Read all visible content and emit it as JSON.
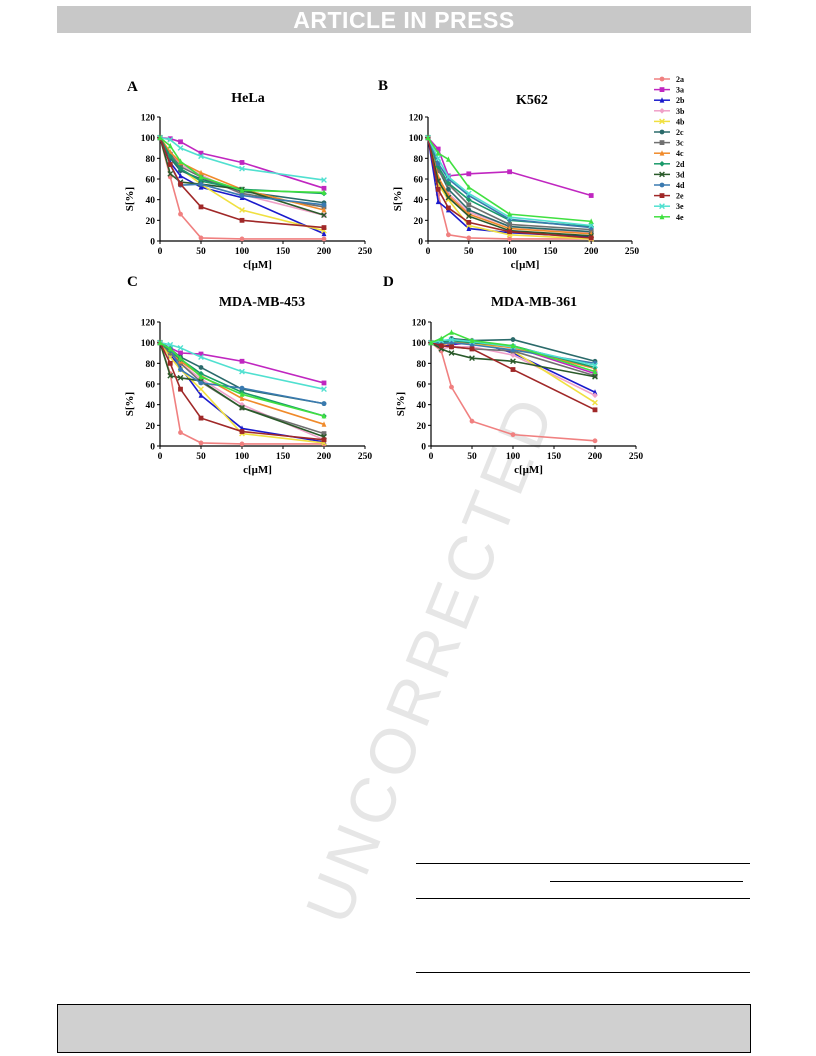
{
  "banner": {
    "text": "ARTICLE IN PRESS"
  },
  "watermark": {
    "text": "UNCORRECTED"
  },
  "legend": {
    "entries": [
      "2a",
      "3a",
      "2b",
      "3b",
      "4b",
      "2c",
      "3c",
      "4c",
      "2d",
      "3d",
      "4d",
      "2e",
      "3e",
      "4e"
    ],
    "colors": [
      "#f08080",
      "#c026c0",
      "#1a1acc",
      "#f0a0c8",
      "#f0e040",
      "#2a6a6a",
      "#707070",
      "#f08a2a",
      "#1a9a6a",
      "#2a5a2a",
      "#3a7ab0",
      "#a02828",
      "#50e0d0",
      "#40e040"
    ]
  },
  "chart_data": [
    {
      "type": "line",
      "panel": "A",
      "title": "HeLa",
      "xlabel": "c[μM]",
      "ylabel": "S[%]",
      "xlim": [
        0,
        250
      ],
      "ylim": [
        0,
        120
      ],
      "xticks": [
        0,
        50,
        100,
        150,
        200,
        250
      ],
      "yticks": [
        0,
        20,
        40,
        60,
        80,
        100,
        120
      ],
      "x": [
        0,
        12.5,
        25,
        50,
        100,
        200
      ],
      "series": [
        {
          "name": "2a",
          "values": [
            100,
            62,
            26,
            3,
            2,
            2
          ]
        },
        {
          "name": "3a",
          "values": [
            100,
            99,
            96,
            85,
            76,
            51
          ]
        },
        {
          "name": "2b",
          "values": [
            100,
            76,
            63,
            52,
            42,
            7
          ]
        },
        {
          "name": "3b",
          "values": [
            100,
            85,
            74,
            64,
            45,
            25
          ]
        },
        {
          "name": "4b",
          "values": [
            100,
            82,
            70,
            55,
            30,
            10
          ]
        },
        {
          "name": "2c",
          "values": [
            100,
            80,
            68,
            60,
            48,
            37
          ]
        },
        {
          "name": "3c",
          "values": [
            100,
            84,
            72,
            62,
            46,
            33
          ]
        },
        {
          "name": "4c",
          "values": [
            100,
            86,
            76,
            66,
            50,
            30
          ]
        },
        {
          "name": "2d",
          "values": [
            100,
            82,
            70,
            58,
            50,
            46
          ]
        },
        {
          "name": "3d",
          "values": [
            100,
            65,
            57,
            55,
            50,
            25
          ]
        },
        {
          "name": "4d",
          "values": [
            100,
            74,
            54,
            55,
            44,
            35
          ]
        },
        {
          "name": "2e",
          "values": [
            100,
            74,
            55,
            33,
            20,
            13
          ]
        },
        {
          "name": "3e",
          "values": [
            100,
            98,
            90,
            82,
            70,
            59
          ]
        },
        {
          "name": "4e",
          "values": [
            100,
            92,
            77,
            62,
            49,
            47
          ]
        }
      ]
    },
    {
      "type": "line",
      "panel": "B",
      "title": "K562",
      "xlabel": "c[μM]",
      "ylabel": "S[%]",
      "xlim": [
        0,
        250
      ],
      "ylim": [
        0,
        120
      ],
      "xticks": [
        0,
        50,
        100,
        150,
        200,
        250
      ],
      "yticks": [
        0,
        20,
        40,
        60,
        80,
        100,
        120
      ],
      "x": [
        0,
        12.5,
        25,
        50,
        100,
        200
      ],
      "series": [
        {
          "name": "2a",
          "values": [
            100,
            45,
            6,
            3,
            2,
            2
          ]
        },
        {
          "name": "3a",
          "values": [
            100,
            89,
            63,
            65,
            67,
            44
          ]
        },
        {
          "name": "2b",
          "values": [
            100,
            38,
            30,
            12,
            8,
            4
          ]
        },
        {
          "name": "3b",
          "values": [
            100,
            60,
            46,
            28,
            14,
            8
          ]
        },
        {
          "name": "4b",
          "values": [
            100,
            55,
            40,
            15,
            6,
            2
          ]
        },
        {
          "name": "2c",
          "values": [
            100,
            70,
            50,
            30,
            14,
            9
          ]
        },
        {
          "name": "3c",
          "values": [
            100,
            68,
            55,
            35,
            16,
            11
          ]
        },
        {
          "name": "4c",
          "values": [
            100,
            62,
            44,
            26,
            12,
            7
          ]
        },
        {
          "name": "2d",
          "values": [
            100,
            72,
            56,
            40,
            20,
            14
          ]
        },
        {
          "name": "3d",
          "values": [
            100,
            58,
            42,
            24,
            10,
            5
          ]
        },
        {
          "name": "4d",
          "values": [
            100,
            75,
            60,
            44,
            21,
            13
          ]
        },
        {
          "name": "2e",
          "values": [
            100,
            50,
            32,
            18,
            9,
            3
          ]
        },
        {
          "name": "3e",
          "values": [
            100,
            80,
            62,
            46,
            23,
            15
          ]
        },
        {
          "name": "4e",
          "values": [
            100,
            85,
            79,
            52,
            26,
            19
          ]
        }
      ]
    },
    {
      "type": "line",
      "panel": "C",
      "title": "MDA-MB-453",
      "xlabel": "c[μM]",
      "ylabel": "S[%]",
      "xlim": [
        0,
        250
      ],
      "ylim": [
        0,
        120
      ],
      "xticks": [
        0,
        50,
        100,
        150,
        200,
        250
      ],
      "yticks": [
        0,
        20,
        40,
        60,
        80,
        100,
        120
      ],
      "x": [
        0,
        12.5,
        25,
        50,
        100,
        200
      ],
      "series": [
        {
          "name": "2a",
          "values": [
            100,
            70,
            13,
            3,
            2,
            2
          ]
        },
        {
          "name": "3a",
          "values": [
            100,
            95,
            90,
            89,
            82,
            61
          ]
        },
        {
          "name": "2b",
          "values": [
            100,
            88,
            76,
            49,
            17,
            4
          ]
        },
        {
          "name": "3b",
          "values": [
            100,
            90,
            80,
            65,
            40,
            6
          ]
        },
        {
          "name": "4b",
          "values": [
            100,
            86,
            74,
            55,
            12,
            3
          ]
        },
        {
          "name": "2c",
          "values": [
            100,
            94,
            86,
            76,
            55,
            41
          ]
        },
        {
          "name": "3c",
          "values": [
            100,
            90,
            80,
            62,
            37,
            12
          ]
        },
        {
          "name": "4c",
          "values": [
            100,
            92,
            82,
            68,
            46,
            21
          ]
        },
        {
          "name": "2d",
          "values": [
            100,
            92,
            84,
            70,
            52,
            29
          ]
        },
        {
          "name": "3d",
          "values": [
            100,
            68,
            66,
            63,
            37,
            9
          ]
        },
        {
          "name": "4d",
          "values": [
            100,
            95,
            74,
            61,
            56,
            41
          ]
        },
        {
          "name": "2e",
          "values": [
            100,
            80,
            55,
            27,
            14,
            6
          ]
        },
        {
          "name": "3e",
          "values": [
            100,
            98,
            95,
            86,
            72,
            55
          ]
        },
        {
          "name": "4e",
          "values": [
            100,
            94,
            85,
            67,
            50,
            29
          ]
        }
      ]
    },
    {
      "type": "line",
      "panel": "D",
      "title": "MDA-MB-361",
      "xlabel": "c[μM]",
      "ylabel": "S[%]",
      "xlim": [
        0,
        250
      ],
      "ylim": [
        0,
        120
      ],
      "xticks": [
        0,
        50,
        100,
        150,
        200,
        250
      ],
      "yticks": [
        0,
        20,
        40,
        60,
        80,
        100,
        120
      ],
      "x": [
        0,
        12.5,
        25,
        50,
        100,
        200
      ],
      "series": [
        {
          "name": "2a",
          "values": [
            100,
            92,
            57,
            24,
            11,
            5
          ]
        },
        {
          "name": "3a",
          "values": [
            100,
            100,
            98,
            100,
            96,
            70
          ]
        },
        {
          "name": "2b",
          "values": [
            100,
            96,
            98,
            102,
            90,
            52
          ]
        },
        {
          "name": "3b",
          "values": [
            100,
            94,
            96,
            96,
            88,
            49
          ]
        },
        {
          "name": "4b",
          "values": [
            100,
            98,
            100,
            100,
            92,
            42
          ]
        },
        {
          "name": "2c",
          "values": [
            100,
            100,
            104,
            102,
            103,
            82
          ]
        },
        {
          "name": "3c",
          "values": [
            100,
            97,
            96,
            94,
            92,
            68
          ]
        },
        {
          "name": "4c",
          "values": [
            100,
            98,
            100,
            100,
            95,
            75
          ]
        },
        {
          "name": "2d",
          "values": [
            100,
            99,
            102,
            100,
            97,
            76
          ]
        },
        {
          "name": "3d",
          "values": [
            100,
            94,
            90,
            85,
            82,
            67
          ]
        },
        {
          "name": "4d",
          "values": [
            100,
            99,
            100,
            98,
            93,
            80
          ]
        },
        {
          "name": "2e",
          "values": [
            100,
            97,
            96,
            94,
            74,
            35
          ]
        },
        {
          "name": "3e",
          "values": [
            100,
            102,
            103,
            101,
            96,
            78
          ]
        },
        {
          "name": "4e",
          "values": [
            100,
            104,
            110,
            102,
            97,
            72
          ]
        }
      ]
    }
  ]
}
